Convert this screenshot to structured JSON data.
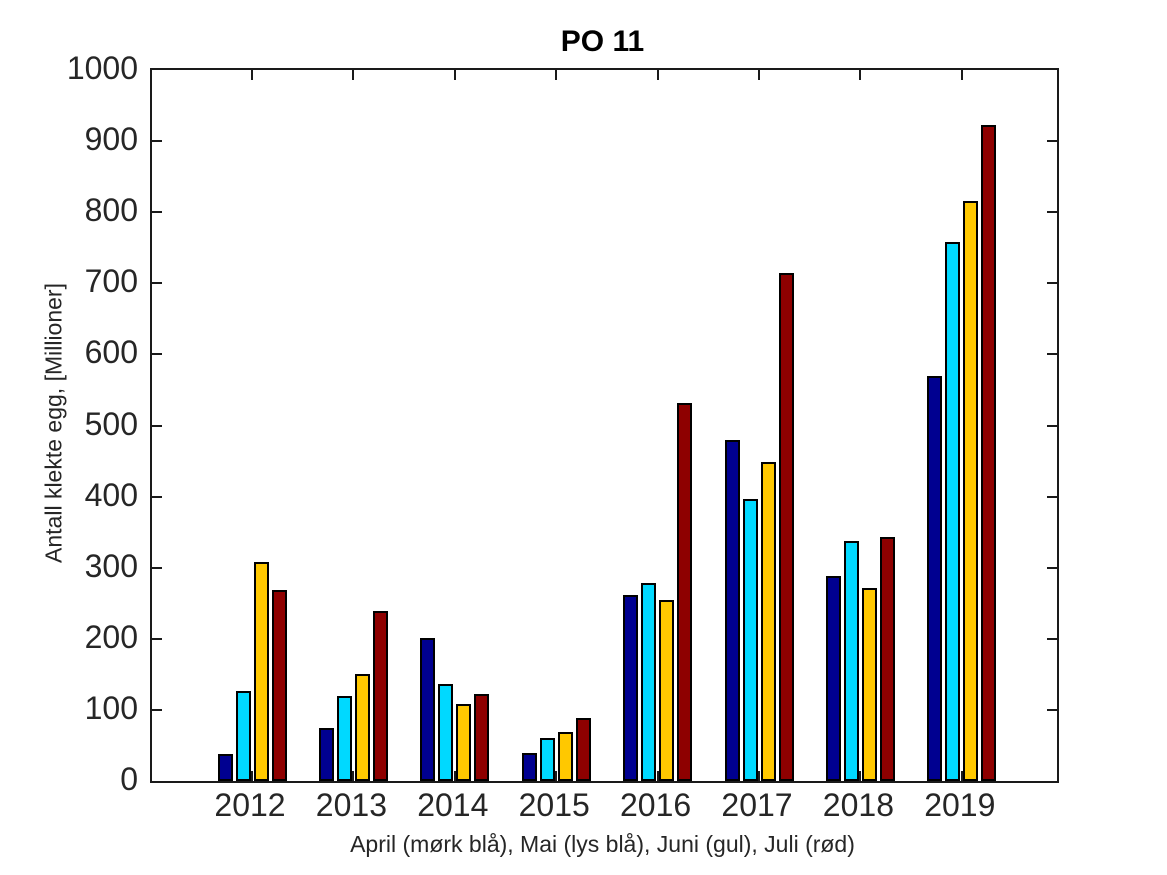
{
  "figure": {
    "title": "PO 11",
    "xlabel": "April (mørk blå), Mai (lys blå), Juni (gul), Juli (rød)",
    "ylabel": "Antall klekte egg, [Millioner]"
  },
  "chart_data": {
    "type": "bar",
    "title": "PO 11",
    "xlabel": "April (mørk blå), Mai (lys blå), Juni (gul), Juli (rød)",
    "ylabel": "Antall klekte egg, [Millioner]",
    "categories": [
      "2012",
      "2013",
      "2014",
      "2015",
      "2016",
      "2017",
      "2018",
      "2019"
    ],
    "series": [
      {
        "name": "April",
        "color_name": "mørk blå",
        "color": "#000090",
        "values": [
          38,
          75,
          201,
          39,
          261,
          480,
          288,
          570
        ]
      },
      {
        "name": "Mai",
        "color_name": "lys blå",
        "color": "#00D9FF",
        "values": [
          126,
          120,
          137,
          60,
          279,
          396,
          337,
          758
        ]
      },
      {
        "name": "Juni",
        "color_name": "gul",
        "color": "#FFC800",
        "values": [
          308,
          150,
          109,
          69,
          254,
          448,
          272,
          816
        ]
      },
      {
        "name": "Juli",
        "color_name": "rød",
        "color": "#8E0000",
        "values": [
          269,
          239,
          123,
          88,
          532,
          714,
          343,
          923
        ]
      }
    ],
    "ylim": [
      0,
      1000
    ],
    "yticks": [
      0,
      100,
      200,
      300,
      400,
      500,
      600,
      700,
      800,
      900,
      1000
    ],
    "grid": false,
    "legend_position": "none",
    "bar_edge_color": "#000000",
    "axis_color": "#1a1a1a",
    "background": "#FFFFFF"
  }
}
